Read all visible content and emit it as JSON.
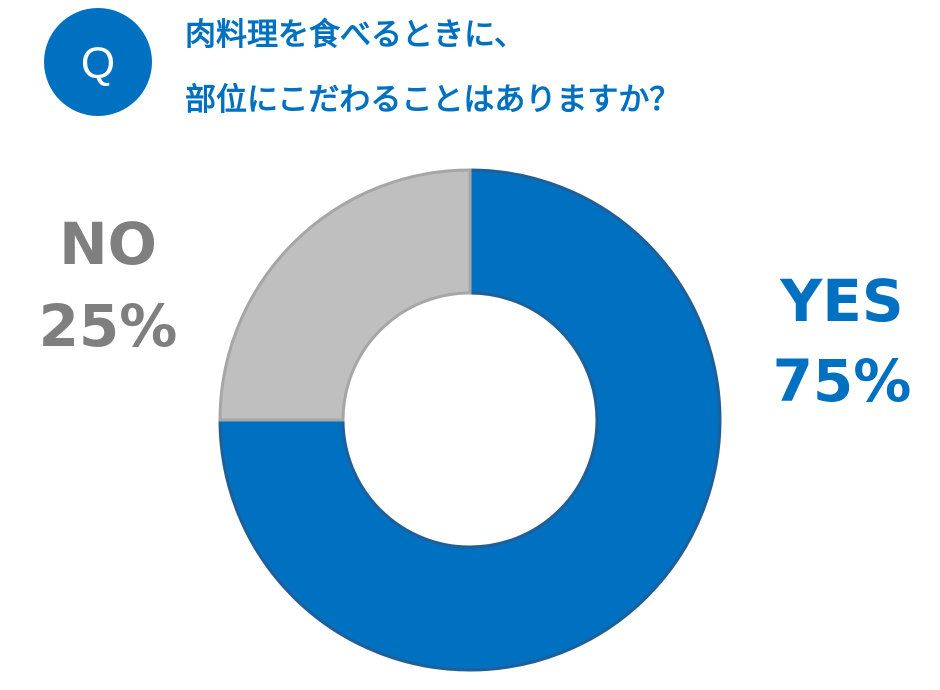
{
  "chart_data": {
    "type": "pie",
    "badge": "Q",
    "title": [
      "肉料理を食べるときに、",
      "部位にこだわることはありますか？"
    ],
    "categories": [
      "YES",
      "NO"
    ],
    "values": [
      75,
      25
    ],
    "value_labels": [
      "75%",
      "25%"
    ],
    "colors": [
      "#0070c0",
      "#bfbfbf"
    ],
    "donut": true
  }
}
